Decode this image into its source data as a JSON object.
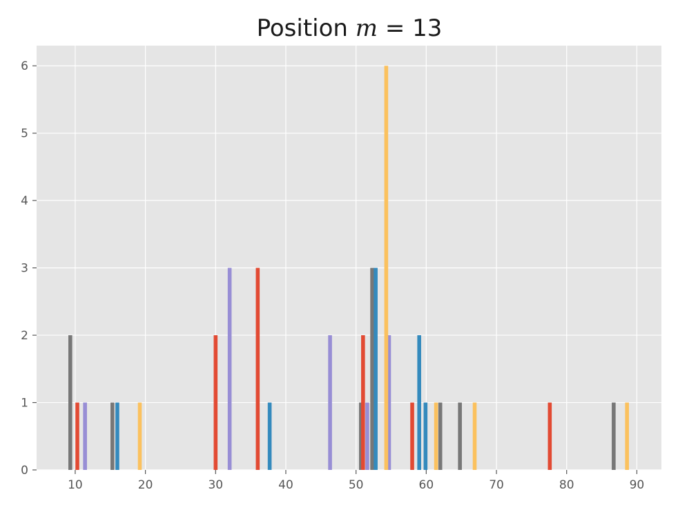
{
  "chart_data": {
    "type": "bar",
    "title_prefix": "Position ",
    "title_var": "m",
    "title_suffix": " = 13",
    "xlabel": "",
    "ylabel": "",
    "xlim": [
      4.5,
      93.5
    ],
    "ylim": [
      0,
      6.3
    ],
    "xticks": [
      10,
      20,
      30,
      40,
      50,
      60,
      70,
      80,
      90
    ],
    "yticks": [
      0,
      1,
      2,
      3,
      4,
      5,
      6
    ],
    "grid": true,
    "bar_width_units": 0.55,
    "colors": {
      "red": "#E24A33",
      "blue": "#348ABD",
      "purple": "#988ED5",
      "gray": "#777777",
      "yellow": "#FBC15E",
      "background": "#E5E5E5",
      "grid": "#FFFFFF"
    },
    "series": [
      {
        "color_key": "gray",
        "x": [
          9.3,
          15.3,
          50.7,
          52.3,
          62.0,
          64.8,
          86.7
        ],
        "values": [
          2,
          1,
          1,
          3,
          1,
          1,
          1
        ]
      },
      {
        "color_key": "red",
        "x": [
          10.3,
          30.0,
          36.0,
          51.0,
          58.0,
          77.6
        ],
        "values": [
          1,
          2,
          3,
          2,
          1,
          1
        ]
      },
      {
        "color_key": "purple",
        "x": [
          11.4,
          32.0,
          46.3,
          51.6,
          54.7
        ],
        "values": [
          1,
          3,
          2,
          1,
          2
        ]
      },
      {
        "color_key": "blue",
        "x": [
          16.0,
          37.7,
          52.8,
          59.0,
          59.9
        ],
        "values": [
          1,
          1,
          3,
          2,
          1
        ]
      },
      {
        "color_key": "yellow",
        "x": [
          19.2,
          54.3,
          61.4,
          66.9,
          88.6
        ],
        "values": [
          1,
          6,
          1,
          1,
          1
        ]
      }
    ]
  }
}
